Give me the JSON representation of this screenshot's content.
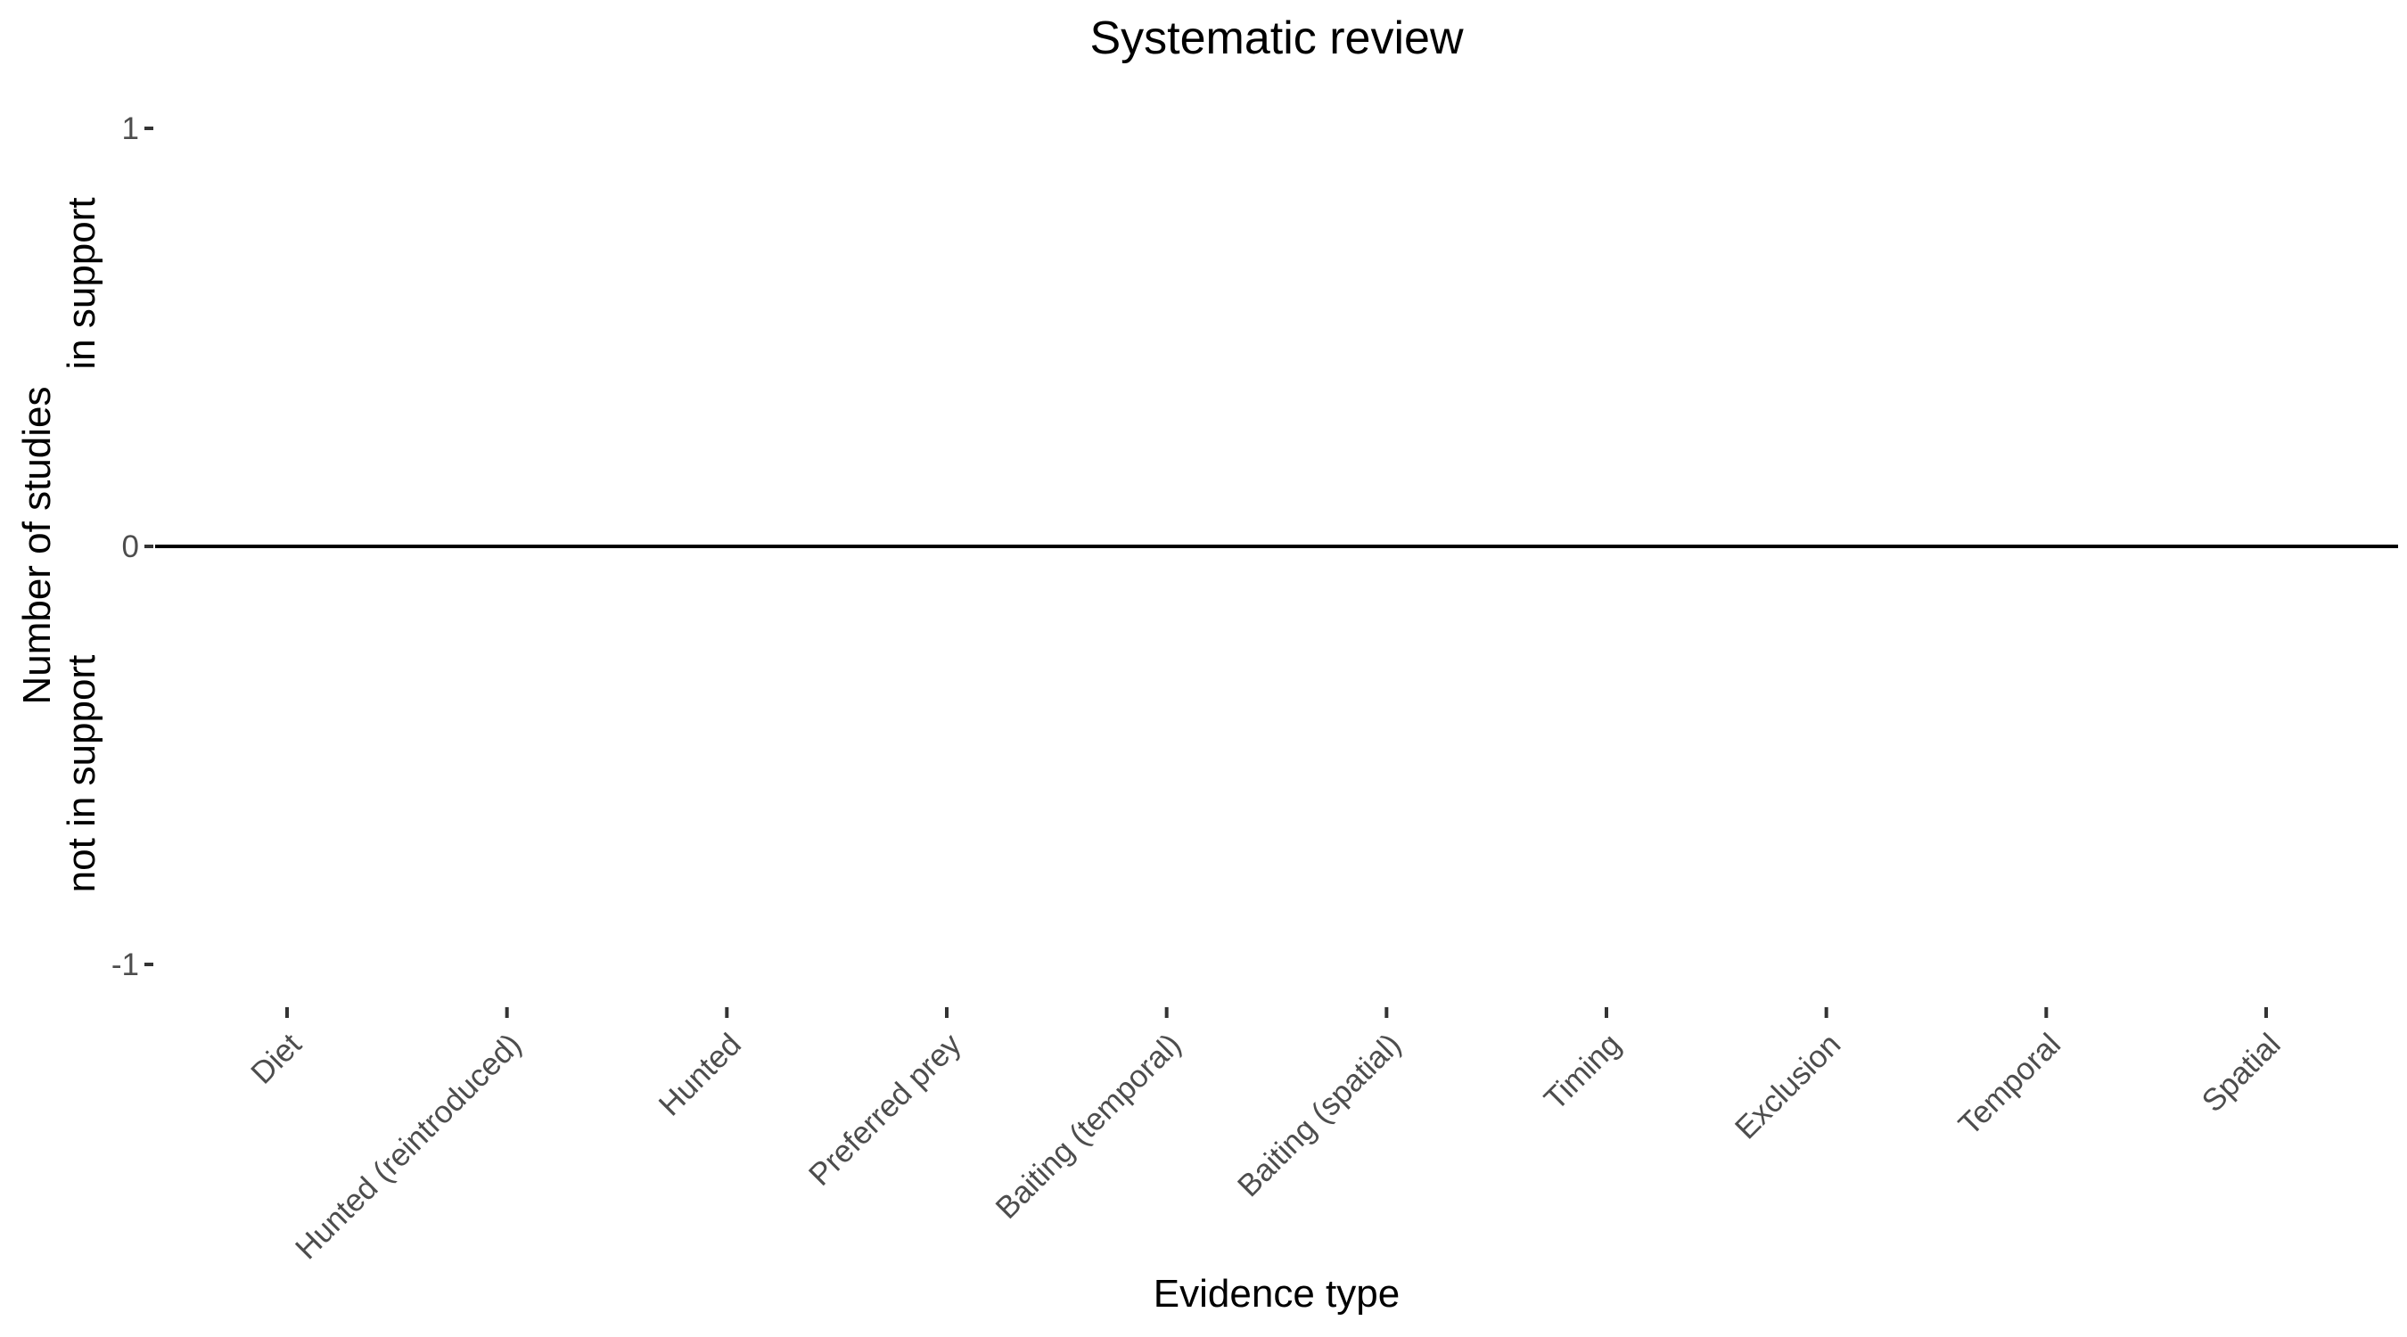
{
  "chart_data": {
    "type": "bar",
    "title": "Systematic review",
    "xlabel": "Evidence type",
    "ylabel_lines": [
      "Number of studies",
      "in support",
      "not in support"
    ],
    "categories": [
      "Diet",
      "Hunted (reintroduced)",
      "Hunted",
      "Preferred prey",
      "Baiting (temporal)",
      "Baiting (spatial)",
      "Timing",
      "Exclusion",
      "Temporal",
      "Spatial"
    ],
    "series": [
      {
        "values": [
          0,
          0,
          0,
          0,
          0,
          0,
          0,
          0,
          0,
          0
        ]
      }
    ],
    "ylim": [
      -1,
      1
    ],
    "yticks": [
      1,
      0,
      -1
    ],
    "grid": false,
    "reference_line": 0,
    "line_color": "#000000",
    "tick_color": "#333333",
    "tick_label_color": "#4d4d4d"
  }
}
